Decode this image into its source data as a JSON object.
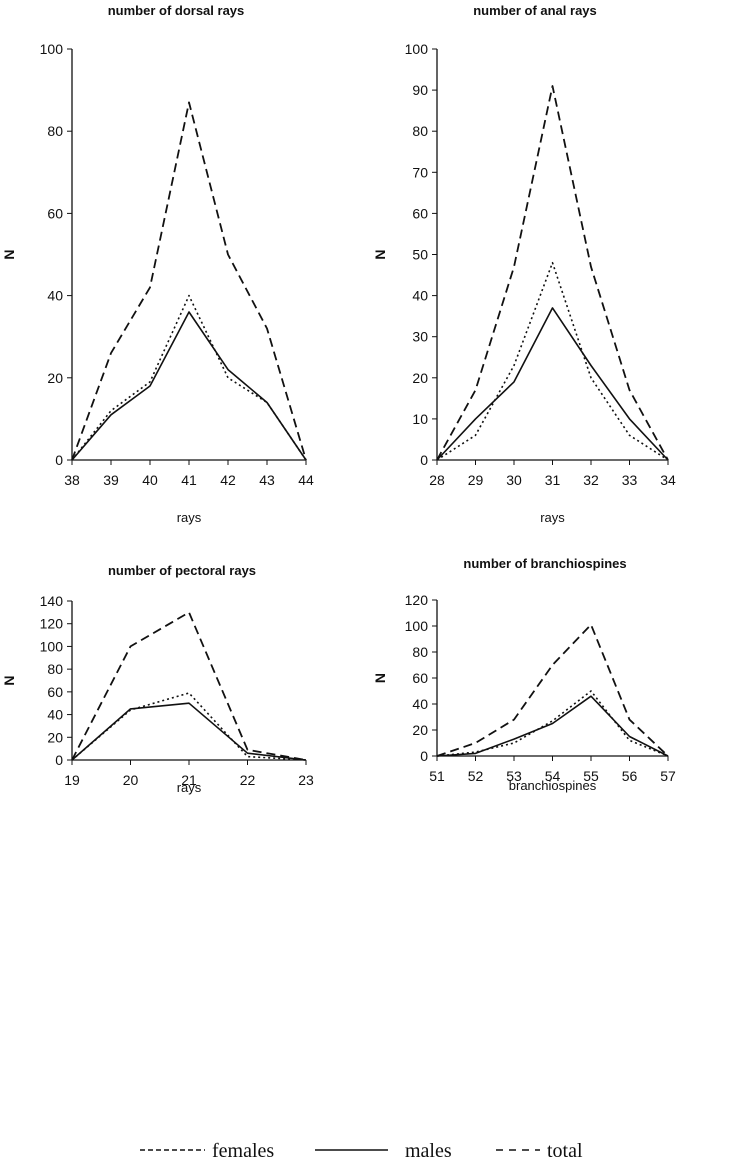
{
  "chart_data": [
    {
      "type": "line",
      "title": "number of dorsal rays",
      "xlabel": "rays",
      "ylabel": "N",
      "x": [
        38,
        39,
        40,
        41,
        42,
        43,
        44
      ],
      "xlim": [
        38,
        44
      ],
      "ylim": [
        0,
        100
      ],
      "yticks": [
        0,
        20,
        40,
        60,
        80,
        100
      ],
      "series": [
        {
          "name": "females",
          "values": [
            0,
            26,
            42,
            87,
            50,
            32,
            0
          ]
        },
        {
          "name": "males",
          "values": [
            0,
            11,
            18,
            36,
            22,
            14,
            0
          ]
        },
        {
          "name": "total",
          "values": [
            0,
            12,
            19,
            40,
            20,
            14,
            0
          ]
        }
      ]
    },
    {
      "type": "line",
      "title": "number of anal rays",
      "xlabel": "rays",
      "ylabel": "N",
      "x": [
        28,
        29,
        30,
        31,
        32,
        33,
        34
      ],
      "xlim": [
        28,
        34
      ],
      "ylim": [
        0,
        100
      ],
      "yticks": [
        0,
        10,
        20,
        30,
        40,
        50,
        60,
        70,
        80,
        90,
        100
      ],
      "series": [
        {
          "name": "females",
          "values": [
            0,
            17,
            47,
            91,
            47,
            17,
            0
          ]
        },
        {
          "name": "males",
          "values": [
            0,
            10,
            19,
            37,
            23,
            10,
            0
          ]
        },
        {
          "name": "total",
          "values": [
            0,
            6,
            23,
            48,
            20,
            6,
            0
          ]
        }
      ]
    },
    {
      "type": "line",
      "title": "number of pectoral rays",
      "xlabel": "rays",
      "ylabel": "N",
      "x": [
        19,
        20,
        21,
        22,
        23
      ],
      "xlim": [
        19,
        23
      ],
      "ylim": [
        0,
        140
      ],
      "yticks": [
        0,
        20,
        40,
        60,
        80,
        100,
        120,
        140
      ],
      "series": [
        {
          "name": "females",
          "values": [
            0,
            100,
            130,
            9,
            0
          ]
        },
        {
          "name": "males",
          "values": [
            0,
            45,
            50,
            6,
            0
          ]
        },
        {
          "name": "total",
          "values": [
            0,
            44,
            59,
            3,
            0
          ]
        }
      ]
    },
    {
      "type": "line",
      "title": "number of branchiospines",
      "xlabel": "branchiospines",
      "ylabel": "N",
      "x": [
        51,
        52,
        53,
        54,
        55,
        56,
        57
      ],
      "xlim": [
        51,
        57
      ],
      "ylim": [
        0,
        120
      ],
      "yticks": [
        0,
        20,
        40,
        60,
        80,
        100,
        120
      ],
      "series": [
        {
          "name": "females",
          "values": [
            0,
            10,
            28,
            70,
            101,
            28,
            0
          ]
        },
        {
          "name": "males",
          "values": [
            0,
            2,
            13,
            25,
            46,
            15,
            0
          ]
        },
        {
          "name": "total",
          "values": [
            0,
            3,
            10,
            27,
            50,
            12,
            0
          ]
        }
      ]
    }
  ],
  "legend": {
    "females": "females",
    "males": "males",
    "total": "total"
  }
}
